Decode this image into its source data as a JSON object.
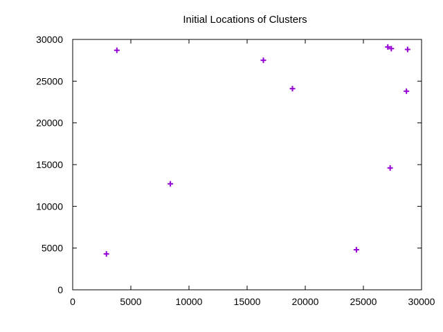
{
  "chart_data": {
    "type": "scatter",
    "title": "Initial Locations of Clusters",
    "xlabel": "",
    "ylabel": "",
    "xlim": [
      0,
      30000
    ],
    "ylim": [
      0,
      30000
    ],
    "x_ticks": [
      0,
      5000,
      10000,
      15000,
      20000,
      25000,
      30000
    ],
    "y_ticks": [
      0,
      5000,
      10000,
      15000,
      20000,
      25000,
      30000
    ],
    "grid": false,
    "marker": "plus",
    "color": "#9400D3",
    "series": [
      {
        "points": [
          {
            "x": 2900,
            "y": 4300
          },
          {
            "x": 3800,
            "y": 28700
          },
          {
            "x": 8400,
            "y": 12700
          },
          {
            "x": 16400,
            "y": 27500
          },
          {
            "x": 18900,
            "y": 24100
          },
          {
            "x": 24400,
            "y": 4800
          },
          {
            "x": 27100,
            "y": 29100
          },
          {
            "x": 27400,
            "y": 28900
          },
          {
            "x": 27300,
            "y": 14600
          },
          {
            "x": 28700,
            "y": 23800
          },
          {
            "x": 28800,
            "y": 28800
          }
        ]
      }
    ]
  }
}
